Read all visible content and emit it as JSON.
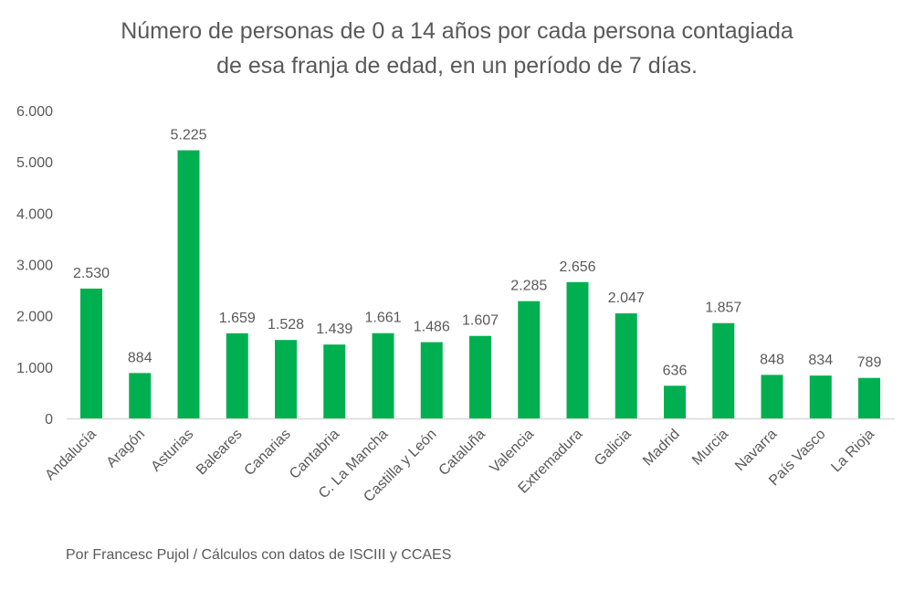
{
  "chart_data": {
    "type": "bar",
    "title_lines": [
      "Número de personas de 0 a 14 años por cada persona contagiada",
      "de esa franja de edad, en un período de 7 días."
    ],
    "categories": [
      "Andalucía",
      "Aragón",
      "Asturias",
      "Baleares",
      "Canarias",
      "Cantabria",
      "C. La Mancha",
      "Castilla y León",
      "Cataluña",
      "Valencia",
      "Extremadura",
      "Galicia",
      "Madrid",
      "Murcia",
      "Navarra",
      "País Vasco",
      "La Rioja"
    ],
    "values": [
      2530,
      884,
      5225,
      1659,
      1528,
      1439,
      1661,
      1486,
      1607,
      2285,
      2656,
      2047,
      636,
      1857,
      848,
      834,
      789
    ],
    "data_labels": [
      "2.530",
      "884",
      "5.225",
      "1.659",
      "1.528",
      "1.439",
      "1.661",
      "1.486",
      "1.607",
      "2.285",
      "2.656",
      "2.047",
      "636",
      "1.857",
      "848",
      "834",
      "789"
    ],
    "yticks": [
      "0",
      "1.000",
      "2.000",
      "3.000",
      "4.000",
      "5.000",
      "6.000"
    ],
    "ylim": [
      0,
      6000
    ],
    "grid": false,
    "legend": "none",
    "bar_color": "#00B050",
    "source": "Por Francesc Pujol / Cálculos con datos de ISCIII y CCAES"
  }
}
